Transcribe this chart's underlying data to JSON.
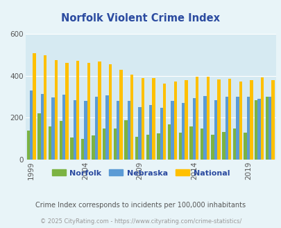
{
  "title": "Norfolk Violent Crime Index",
  "years": [
    1999,
    2000,
    2001,
    2002,
    2003,
    2004,
    2005,
    2006,
    2007,
    2008,
    2009,
    2010,
    2011,
    2012,
    2013,
    2014,
    2015,
    2016,
    2017,
    2018,
    2019,
    2020,
    2021
  ],
  "norfolk": [
    140,
    220,
    160,
    185,
    105,
    100,
    115,
    150,
    150,
    190,
    110,
    120,
    125,
    170,
    128,
    160,
    150,
    120,
    133,
    150,
    130,
    285,
    300
  ],
  "nebraska": [
    330,
    315,
    298,
    310,
    285,
    280,
    302,
    307,
    280,
    280,
    252,
    260,
    248,
    280,
    270,
    293,
    303,
    285,
    302,
    302,
    302,
    290,
    302
  ],
  "national": [
    510,
    498,
    475,
    462,
    472,
    463,
    469,
    455,
    430,
    405,
    389,
    390,
    363,
    374,
    381,
    398,
    398,
    383,
    388,
    375,
    379,
    395,
    379
  ],
  "norfolk_color": "#7cb342",
  "nebraska_color": "#5b9bd5",
  "national_color": "#ffc000",
  "bg_color": "#e8f4f8",
  "plot_bg": "#d6eaf2",
  "title_color": "#2b4ba0",
  "text_color": "#555555",
  "footer_color": "#999999",
  "ylim": [
    0,
    600
  ],
  "yticks": [
    0,
    200,
    400,
    600
  ],
  "xtick_years": [
    1999,
    2004,
    2009,
    2014,
    2019
  ],
  "subtitle": "Crime Index corresponds to incidents per 100,000 inhabitants",
  "footer": "© 2025 CityRating.com - https://www.cityrating.com/crime-statistics/",
  "legend_labels": [
    "Norfolk",
    "Nebraska",
    "National"
  ]
}
